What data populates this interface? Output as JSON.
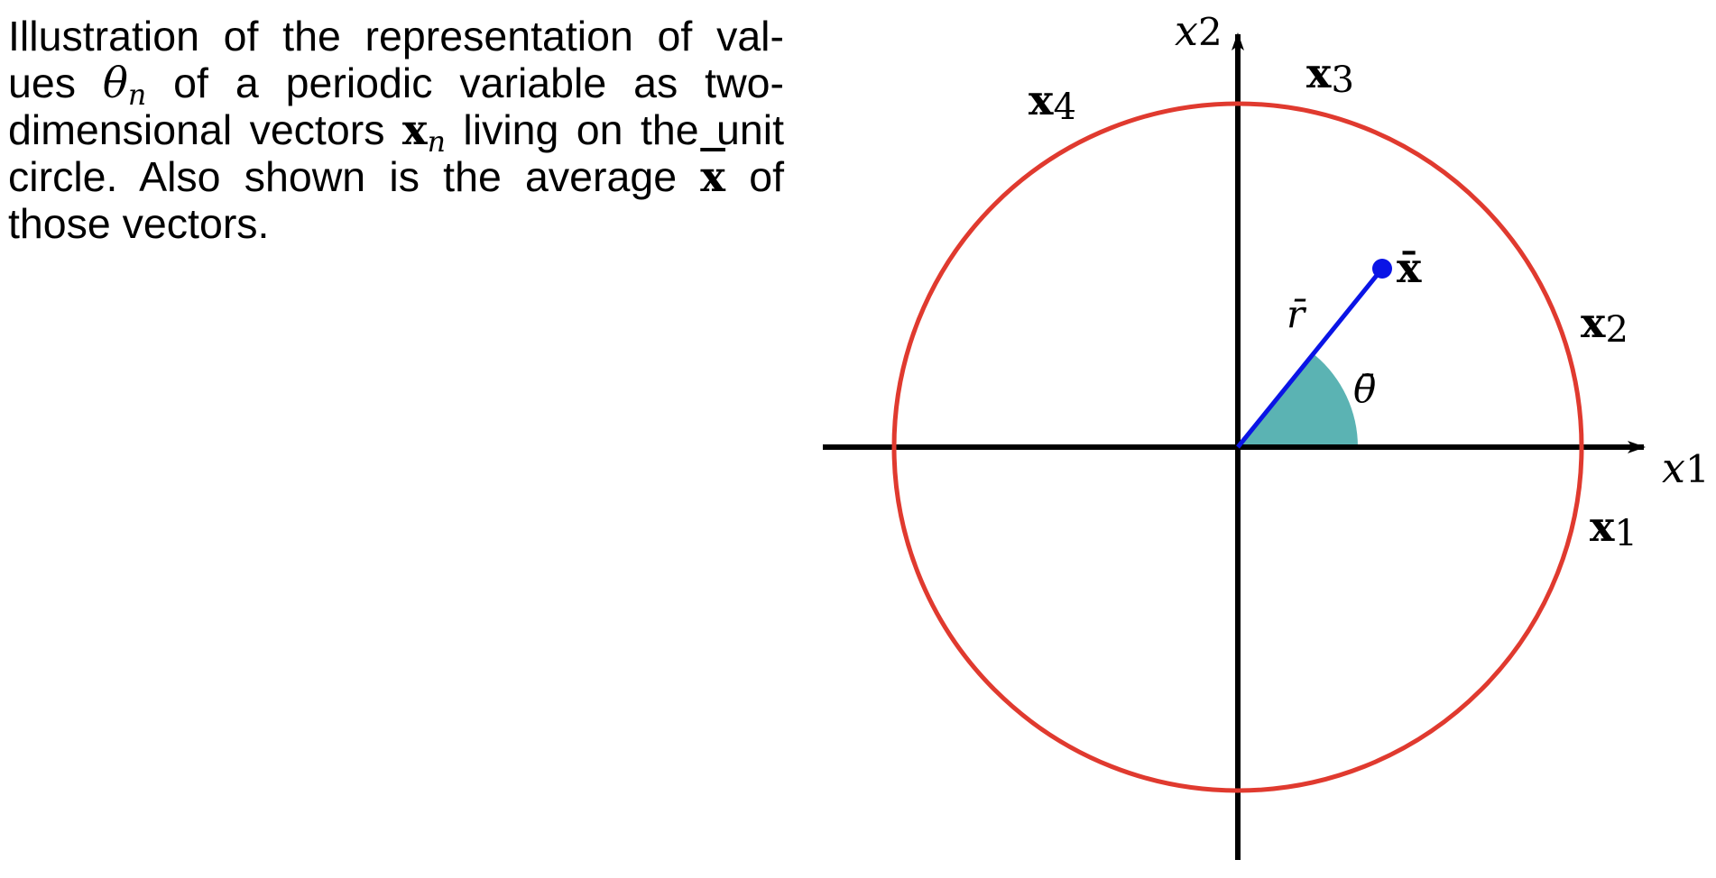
{
  "caption": {
    "l1_a": "Illustration of the representation of val-",
    "l2_a": "ues ",
    "l2_theta": "θ",
    "l2_n": "n",
    "l2_b": " of a periodic variable as two-",
    "l3_a": "dimensional vectors ",
    "l3_x": "x",
    "l3_n": "n",
    "l3_b": " living on the unit",
    "l4_a": "circle.  Also shown is the average ",
    "l4_x": "x",
    "l4_b": " of",
    "l5_a": "those vectors."
  },
  "figure": {
    "axis_x_var": "x",
    "axis_x_sub": "1",
    "axis_y_var": "x",
    "axis_y_sub": "2",
    "vec_letter": "x",
    "vec1_sub": "1",
    "vec2_sub": "2",
    "vec3_sub": "3",
    "vec4_sub": "4",
    "mean_vec": "x̄",
    "mean_r": "r̄",
    "mean_theta": "θ̄",
    "colors": {
      "circle": "#e03a2f",
      "mean_vector": "#0a14e6",
      "angle_wedge": "#5bb3b3",
      "axes": "#000000"
    }
  }
}
